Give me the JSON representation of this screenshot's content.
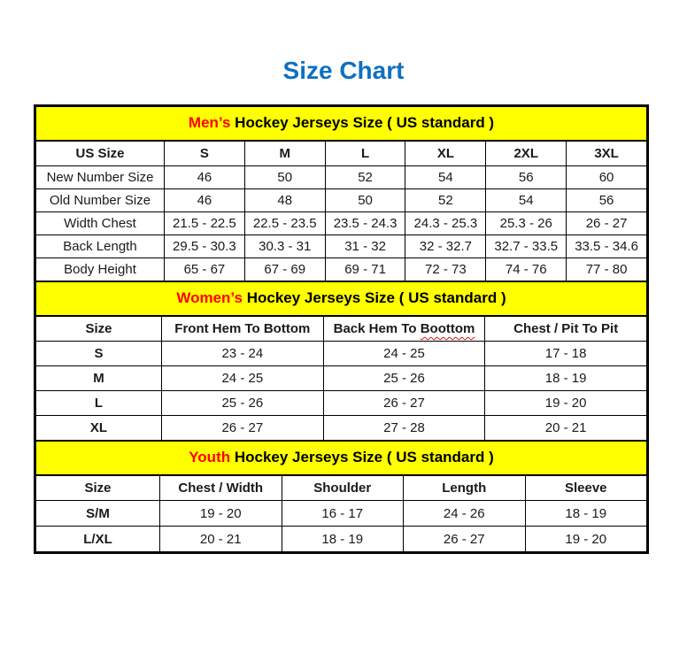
{
  "page": {
    "title": "Size Chart"
  },
  "colors": {
    "title_blue": "#0f70c2",
    "band_yellow": "#ffff00",
    "accent_red": "#ff0000",
    "border_black": "#000000"
  },
  "tables": [
    {
      "name": "men",
      "band": {
        "accent": "Men’s",
        "rest": " Hockey Jerseys Size ( US standard )"
      },
      "label_bold": false,
      "header": [
        "US Size",
        "S",
        "M",
        "L",
        "XL",
        "2XL",
        "3XL"
      ],
      "rows": [
        {
          "label": "New Number Size",
          "cells": [
            "46",
            "50",
            "52",
            "54",
            "56",
            "60"
          ]
        },
        {
          "label": "Old Number Size",
          "cells": [
            "46",
            "48",
            "50",
            "52",
            "54",
            "56"
          ]
        },
        {
          "label": "Width Chest",
          "cells": [
            "21.5 - 22.5",
            "22.5 - 23.5",
            "23.5 - 24.3",
            "24.3 - 25.3",
            "25.3 - 26",
            "26 - 27"
          ]
        },
        {
          "label": "Back Length",
          "cells": [
            "29.5 - 30.3",
            "30.3 - 31",
            "31 - 32",
            "32 - 32.7",
            "32.7 - 33.5",
            "33.5 - 34.6"
          ]
        },
        {
          "label": "Body Height",
          "cells": [
            "65 - 67",
            "67 - 69",
            "69 - 71",
            "72 - 73",
            "74 - 76",
            "77 - 80"
          ]
        }
      ]
    },
    {
      "name": "women",
      "band": {
        "accent": "Women’s",
        "rest": " Hockey Jerseys Size ( US standard )"
      },
      "label_bold": true,
      "header": [
        "Size",
        "Front Hem To Bottom",
        {
          "text": "Back Hem To ",
          "squiggle": "Boottom"
        },
        "Chest / Pit To Pit"
      ],
      "rows": [
        {
          "label": "S",
          "cells": [
            "23 - 24",
            "24 - 25",
            "17 - 18"
          ]
        },
        {
          "label": "M",
          "cells": [
            "24 - 25",
            "25 - 26",
            "18 - 19"
          ]
        },
        {
          "label": "L",
          "cells": [
            "25 - 26",
            "26 - 27",
            "19 - 20"
          ]
        },
        {
          "label": "XL",
          "cells": [
            "26 - 27",
            "27 - 28",
            "20 - 21"
          ]
        }
      ]
    },
    {
      "name": "youth",
      "band": {
        "accent": "Youth",
        "rest": " Hockey Jerseys Size ( US standard )"
      },
      "label_bold": true,
      "header": [
        "Size",
        "Chest / Width",
        "Shoulder",
        "Length",
        "Sleeve"
      ],
      "rows": [
        {
          "label": "S/M",
          "cells": [
            "19 - 20",
            "16 - 17",
            "24 - 26",
            "18 - 19"
          ]
        },
        {
          "label": "L/XL",
          "cells": [
            "20 - 21",
            "18 - 19",
            "26 - 27",
            "19 - 20"
          ]
        }
      ]
    }
  ]
}
